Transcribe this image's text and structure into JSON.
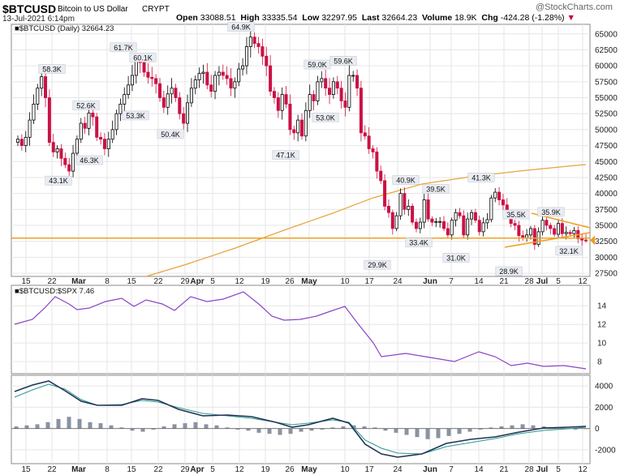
{
  "header": {
    "symbol": "$BTCUSD",
    "name": "Bitcoin to US Dollar",
    "exchange": "CRYPT",
    "date": "13-Jul-2021 6:14pm",
    "watermark": "@StockCharts.com",
    "open_label": "Open",
    "open": "33088.51",
    "high_label": "High",
    "high": "33335.54",
    "low_label": "Low",
    "low": "32297.95",
    "last_label": "Last",
    "last": "32664.23",
    "volume_label": "Volume",
    "volume": "18.9K",
    "chg_label": "Chg",
    "chg": "-424.28 (-1.28%)"
  },
  "colors": {
    "up": "#000000",
    "down": "#cc1144",
    "ma": "#e8a33a",
    "support": "#f0a020",
    "triangle": "#f0a020",
    "ratio": "#8a45c5",
    "macd": "#223355",
    "signal": "#2a9a90",
    "hist": "#8a93a3"
  },
  "chart_data": [
    {
      "type": "candlestick",
      "legend": "$BTCUSD (Daily) 32664.23",
      "y_ticks": [
        27500,
        30000,
        32500,
        35000,
        37500,
        40000,
        42500,
        45000,
        47500,
        50000,
        52500,
        55000,
        57500,
        60000,
        62500,
        65000
      ],
      "ylim": [
        27000,
        66500
      ],
      "x_ticks": [
        "15",
        "22",
        "Mar",
        "8",
        "15",
        "22",
        "29",
        "Apr",
        "5",
        "12",
        "19",
        "26",
        "May",
        "10",
        "17",
        "24",
        "Jun",
        "7",
        "14",
        "21",
        "28",
        "Jul",
        "5",
        "12"
      ],
      "last_value": 32664.23,
      "annotations": [
        {
          "label": "58.3K",
          "value": 58300,
          "pos": "above"
        },
        {
          "label": "43.1K",
          "value": 43100,
          "pos": "below"
        },
        {
          "label": "52.6K",
          "value": 52600,
          "pos": "above"
        },
        {
          "label": "46.3K",
          "value": 46300,
          "pos": "below"
        },
        {
          "label": "61.7K",
          "value": 61700,
          "pos": "above"
        },
        {
          "label": "60.1K",
          "value": 60100,
          "pos": "above"
        },
        {
          "label": "53.3K",
          "value": 53300,
          "pos": "below"
        },
        {
          "label": "50.4K",
          "value": 50400,
          "pos": "below"
        },
        {
          "label": "64.9K",
          "value": 64900,
          "pos": "above"
        },
        {
          "label": "47.1K",
          "value": 47100,
          "pos": "below"
        },
        {
          "label": "59.0K",
          "value": 59000,
          "pos": "above"
        },
        {
          "label": "59.6K",
          "value": 59600,
          "pos": "above"
        },
        {
          "label": "53.0K",
          "value": 53000,
          "pos": "below"
        },
        {
          "label": "29.9K",
          "value": 29900,
          "pos": "below"
        },
        {
          "label": "40.9K",
          "value": 40900,
          "pos": "above"
        },
        {
          "label": "39.5K",
          "value": 39500,
          "pos": "above"
        },
        {
          "label": "33.4K",
          "value": 33400,
          "pos": "below"
        },
        {
          "label": "31.0K",
          "value": 31000,
          "pos": "below"
        },
        {
          "label": "41.3K",
          "value": 41300,
          "pos": "above"
        },
        {
          "label": "28.9K",
          "value": 28900,
          "pos": "below"
        },
        {
          "label": "35.5K",
          "value": 35500,
          "pos": "above"
        },
        {
          "label": "35.9K",
          "value": 35900,
          "pos": "above"
        },
        {
          "label": "32.1K",
          "value": 32100,
          "pos": "below"
        }
      ],
      "support_level": 33000,
      "close_series": [
        48500,
        47500,
        48800,
        51500,
        54000,
        56500,
        58300,
        55000,
        48000,
        46500,
        47000,
        45500,
        44500,
        43500,
        46300,
        48500,
        51000,
        50200,
        52600,
        52000,
        48800,
        48500,
        47000,
        48500,
        50000,
        52500,
        54000,
        55500,
        57000,
        58500,
        61000,
        60500,
        59000,
        58200,
        58000,
        57200,
        55000,
        53500,
        55600,
        56500,
        55000,
        52500,
        51000,
        54200,
        56500,
        57800,
        58800,
        59000,
        57000,
        56000,
        58500,
        59000,
        58500,
        58000,
        56500,
        57500,
        59500,
        60000,
        63000,
        64500,
        63500,
        63000,
        61500,
        60000,
        56000,
        55000,
        53000,
        55500,
        54000,
        50000,
        49500,
        51500,
        49000,
        53000,
        55500,
        54500,
        57500,
        58000,
        56500,
        55500,
        57500,
        56500,
        54500,
        53500,
        58500,
        58500,
        56500,
        49500,
        49000,
        47000,
        46500,
        43500,
        42000,
        38000,
        37000,
        34500,
        36500,
        40000,
        37500,
        38000,
        35500,
        34500,
        35500,
        39000,
        36000,
        35500,
        35600,
        35600,
        34500,
        33500,
        35800,
        37000,
        36500,
        33500,
        36000,
        37000,
        35800,
        34000,
        35400,
        35900,
        39300,
        40200,
        39000,
        38200,
        36700,
        35300,
        35000,
        33400,
        33000,
        33500,
        34500,
        32000,
        34000,
        35800,
        35000,
        34500,
        33600,
        35300,
        33700,
        33900,
        33700,
        34200,
        32900,
        32700,
        32664
      ]
    },
    {
      "type": "line",
      "legend": "$BTCUSD:$SPX 7.46",
      "y_ticks": [
        8,
        10,
        12,
        14
      ],
      "ylim": [
        6.7,
        16.2
      ],
      "last_value": 7.46
    },
    {
      "type": "macd",
      "y_ticks": [
        -2000,
        0,
        2000,
        4000
      ],
      "ylim": [
        -3300,
        5000
      ]
    }
  ]
}
